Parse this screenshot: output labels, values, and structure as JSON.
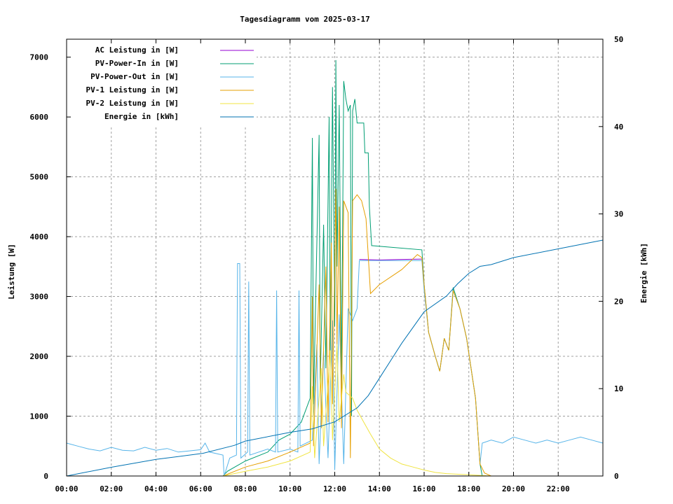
{
  "chart_data": {
    "type": "line",
    "title": "Tagesdiagramm vom 2025-03-17",
    "xlabel": "",
    "ylabel": "Leistung [W]",
    "y2label": "Energie [kWh]",
    "xlim": [
      0,
      24
    ],
    "ylim": [
      0,
      7300
    ],
    "y2lim": [
      0,
      50
    ],
    "x_ticks": [
      0,
      2,
      4,
      6,
      8,
      10,
      12,
      14,
      16,
      18,
      20,
      22
    ],
    "x_tick_labels": [
      "00:00",
      "02:00",
      "04:00",
      "06:00",
      "08:00",
      "10:00",
      "12:00",
      "14:00",
      "16:00",
      "18:00",
      "20:00",
      "22:00"
    ],
    "y_ticks": [
      0,
      1000,
      2000,
      3000,
      4000,
      5000,
      6000,
      7000
    ],
    "y_tick_labels": [
      "0",
      "1000",
      "2000",
      "3000",
      "4000",
      "5000",
      "6000",
      "7000"
    ],
    "y2_ticks": [
      0,
      10,
      20,
      30,
      40,
      50
    ],
    "y2_tick_labels": [
      "0",
      "10",
      "20",
      "30",
      "40",
      "50"
    ],
    "grid": true,
    "legend_position": "top-left",
    "series": [
      {
        "name": "AC Leistung in [W]",
        "axis": "y",
        "color": "#9400d3",
        "points": [
          [
            13.1,
            3620
          ],
          [
            14,
            3610
          ],
          [
            15,
            3620
          ],
          [
            15.9,
            3625
          ]
        ]
      },
      {
        "name": "PV-Power-In in [W]",
        "axis": "y",
        "color": "#009e73",
        "points": [
          [
            0,
            0
          ],
          [
            7,
            0
          ],
          [
            7.2,
            80
          ],
          [
            8,
            250
          ],
          [
            9,
            400
          ],
          [
            9.5,
            600
          ],
          [
            10,
            700
          ],
          [
            10.5,
            900
          ],
          [
            10.9,
            1300
          ],
          [
            11,
            5650
          ],
          [
            11.05,
            1200
          ],
          [
            11.3,
            5700
          ],
          [
            11.35,
            1500
          ],
          [
            11.5,
            4200
          ],
          [
            11.6,
            1800
          ],
          [
            11.75,
            6000
          ],
          [
            11.8,
            2000
          ],
          [
            11.9,
            6500
          ],
          [
            12,
            2500
          ],
          [
            12.05,
            6950
          ],
          [
            12.1,
            3500
          ],
          [
            12.2,
            6200
          ],
          [
            12.3,
            1500
          ],
          [
            12.4,
            6600
          ],
          [
            12.5,
            6300
          ],
          [
            12.6,
            6100
          ],
          [
            12.7,
            6200
          ],
          [
            12.75,
            1000
          ],
          [
            12.8,
            6100
          ],
          [
            12.9,
            6300
          ],
          [
            13,
            5900
          ],
          [
            13.3,
            5900
          ],
          [
            13.35,
            5400
          ],
          [
            13.5,
            5400
          ],
          [
            13.55,
            4500
          ],
          [
            13.65,
            3850
          ],
          [
            15.9,
            3780
          ],
          [
            16,
            3200
          ],
          [
            16.2,
            2400
          ],
          [
            16.5,
            2000
          ],
          [
            16.7,
            1750
          ],
          [
            16.9,
            2300
          ],
          [
            17.1,
            2100
          ],
          [
            17.3,
            3150
          ],
          [
            17.6,
            2800
          ],
          [
            17.9,
            2300
          ],
          [
            18.3,
            1300
          ],
          [
            18.5,
            200
          ],
          [
            18.6,
            0
          ],
          [
            24,
            0
          ]
        ]
      },
      {
        "name": "PV-Power-Out in [W]",
        "axis": "y",
        "color": "#56b4e9",
        "points": [
          [
            0,
            550
          ],
          [
            0.5,
            500
          ],
          [
            1,
            450
          ],
          [
            1.5,
            420
          ],
          [
            2,
            480
          ],
          [
            2.5,
            430
          ],
          [
            3,
            420
          ],
          [
            3.5,
            480
          ],
          [
            4,
            430
          ],
          [
            4.5,
            460
          ],
          [
            5,
            400
          ],
          [
            5.5,
            420
          ],
          [
            6,
            440
          ],
          [
            6.2,
            550
          ],
          [
            6.4,
            400
          ],
          [
            7,
            350
          ],
          [
            7.05,
            0
          ],
          [
            7.3,
            300
          ],
          [
            7.6,
            350
          ],
          [
            7.65,
            3550
          ],
          [
            7.75,
            3550
          ],
          [
            7.8,
            300
          ],
          [
            8.1,
            400
          ],
          [
            8.15,
            3250
          ],
          [
            8.2,
            350
          ],
          [
            9,
            450
          ],
          [
            9.35,
            400
          ],
          [
            9.4,
            3100
          ],
          [
            9.45,
            400
          ],
          [
            10,
            450
          ],
          [
            10.35,
            400
          ],
          [
            10.4,
            3100
          ],
          [
            10.45,
            500
          ],
          [
            11,
            600
          ],
          [
            11.2,
            2200
          ],
          [
            11.3,
            200
          ],
          [
            11.5,
            2100
          ],
          [
            11.7,
            300
          ],
          [
            11.9,
            2600
          ],
          [
            12,
            100
          ],
          [
            12.2,
            2700
          ],
          [
            12.4,
            200
          ],
          [
            12.6,
            2800
          ],
          [
            12.8,
            2600
          ],
          [
            13,
            2800
          ],
          [
            13.1,
            3600
          ],
          [
            15.9,
            3600
          ],
          [
            16,
            3100
          ],
          [
            16.2,
            2400
          ],
          [
            16.5,
            2000
          ],
          [
            16.7,
            1750
          ],
          [
            16.9,
            2300
          ],
          [
            17.1,
            2100
          ],
          [
            17.3,
            3100
          ],
          [
            17.6,
            2800
          ],
          [
            17.9,
            2300
          ],
          [
            18.3,
            1300
          ],
          [
            18.5,
            200
          ],
          [
            18.6,
            550
          ],
          [
            19,
            600
          ],
          [
            19.5,
            550
          ],
          [
            20,
            650
          ],
          [
            20.5,
            600
          ],
          [
            21,
            550
          ],
          [
            21.5,
            600
          ],
          [
            22,
            550
          ],
          [
            22.5,
            600
          ],
          [
            23,
            650
          ],
          [
            23.5,
            600
          ],
          [
            24,
            550
          ]
        ]
      },
      {
        "name": "PV-1 Leistung in [W]",
        "axis": "y",
        "color": "#e69f00",
        "points": [
          [
            0,
            0
          ],
          [
            7,
            0
          ],
          [
            8,
            150
          ],
          [
            9,
            250
          ],
          [
            10,
            400
          ],
          [
            10.9,
            550
          ],
          [
            11,
            3000
          ],
          [
            11.05,
            500
          ],
          [
            11.3,
            3200
          ],
          [
            11.4,
            800
          ],
          [
            11.6,
            3500
          ],
          [
            11.7,
            900
          ],
          [
            11.85,
            3900
          ],
          [
            11.9,
            1200
          ],
          [
            12.05,
            4800
          ],
          [
            12.1,
            2200
          ],
          [
            12.2,
            4500
          ],
          [
            12.3,
            800
          ],
          [
            12.4,
            4600
          ],
          [
            12.6,
            4400
          ],
          [
            12.7,
            300
          ],
          [
            12.8,
            4600
          ],
          [
            13,
            4700
          ],
          [
            13.2,
            4600
          ],
          [
            13.4,
            4300
          ],
          [
            13.6,
            3050
          ],
          [
            14,
            3200
          ],
          [
            15,
            3450
          ],
          [
            15.7,
            3700
          ],
          [
            15.9,
            3650
          ],
          [
            16,
            3200
          ],
          [
            16.2,
            2400
          ],
          [
            16.5,
            2000
          ],
          [
            16.7,
            1750
          ],
          [
            16.9,
            2300
          ],
          [
            17.1,
            2100
          ],
          [
            17.3,
            3100
          ],
          [
            17.6,
            2800
          ],
          [
            17.9,
            2300
          ],
          [
            18.3,
            1300
          ],
          [
            18.5,
            200
          ],
          [
            18.7,
            50
          ],
          [
            19,
            0
          ],
          [
            24,
            0
          ]
        ]
      },
      {
        "name": "PV-2 Leistung in [W]",
        "axis": "y",
        "color": "#f0e442",
        "points": [
          [
            0,
            0
          ],
          [
            7,
            0
          ],
          [
            8,
            80
          ],
          [
            9,
            150
          ],
          [
            10,
            250
          ],
          [
            10.9,
            400
          ],
          [
            11,
            1500
          ],
          [
            11.1,
            300
          ],
          [
            11.4,
            1800
          ],
          [
            11.5,
            500
          ],
          [
            11.8,
            2100
          ],
          [
            11.9,
            600
          ],
          [
            12.1,
            2200
          ],
          [
            12.2,
            900
          ],
          [
            12.4,
            1700
          ],
          [
            12.5,
            1400
          ],
          [
            12.8,
            1300
          ],
          [
            13,
            1100
          ],
          [
            13.3,
            900
          ],
          [
            13.6,
            700
          ],
          [
            14,
            450
          ],
          [
            14.5,
            300
          ],
          [
            15,
            200
          ],
          [
            15.5,
            150
          ],
          [
            16,
            100
          ],
          [
            16.5,
            60
          ],
          [
            17,
            40
          ],
          [
            18,
            20
          ],
          [
            19,
            0
          ],
          [
            24,
            0
          ]
        ]
      },
      {
        "name": "Energie in [kWh]",
        "axis": "y2",
        "color": "#0072b2",
        "points": [
          [
            0,
            0
          ],
          [
            2,
            1
          ],
          [
            4,
            1.9
          ],
          [
            6.1,
            2.6
          ],
          [
            7.5,
            3.5
          ],
          [
            8,
            4
          ],
          [
            10,
            5
          ],
          [
            11,
            5.4
          ],
          [
            12,
            6.2
          ],
          [
            13,
            7.8
          ],
          [
            13.5,
            9.2
          ],
          [
            14,
            11.2
          ],
          [
            15,
            15.2
          ],
          [
            16,
            18.8
          ],
          [
            17,
            20.6
          ],
          [
            17.5,
            22
          ],
          [
            18,
            23.2
          ],
          [
            18.5,
            24
          ],
          [
            19,
            24.2
          ],
          [
            20,
            25
          ],
          [
            22,
            26
          ],
          [
            24,
            27
          ]
        ]
      }
    ]
  }
}
